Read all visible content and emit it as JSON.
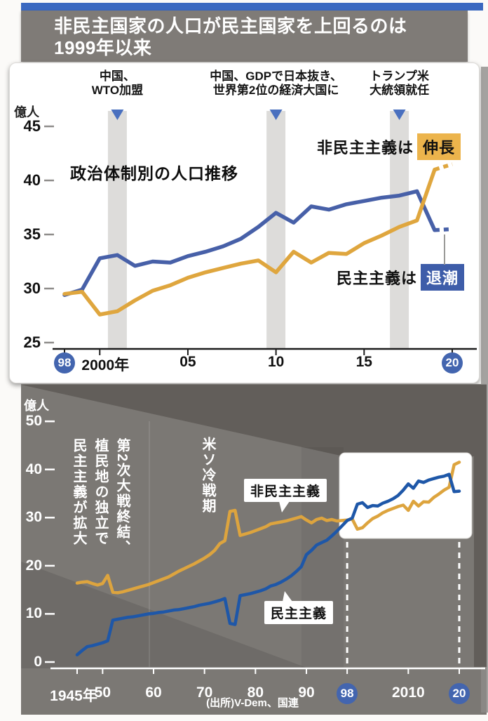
{
  "header": {
    "title_line1": "非民主国家の人口が民主国家を上回るのは",
    "title_line2": "1999年以来"
  },
  "top_chart": {
    "title": "政治体制別の人口推移",
    "unit": "億人",
    "growth_label": {
      "prefix": "非民主主義は",
      "highlight": "伸長"
    },
    "decline_label": {
      "prefix": "民主主義は",
      "highlight": "退潮"
    }
  },
  "bottom_chart": {
    "unit": "億人",
    "era_wwii_lines": [
      "第2次大戦終結、",
      "植民地の独立で",
      "民主主義が拡大"
    ],
    "era_coldwar": "米ソ冷戦期",
    "series_tag_nondemocracy": "非民主主義",
    "series_tag_democracy": "民主主義",
    "source": "(出所)V-Dem、国連"
  },
  "colors": {
    "accent_bar": "#3a68c0",
    "badge_bg": "#4365af",
    "growth_highlight_bg": "#ecb44c",
    "decline_highlight_bg": "#3e5da9",
    "democracy_top": "#4760a8",
    "nondemocracy_top": "#dfa63e",
    "democracy_bottom": "#1e57a8",
    "nondemocracy_bottom": "#dda43e",
    "event_marker": "#4a70bf",
    "event_band": "#dddcda"
  },
  "chart_data": [
    {
      "id": "top",
      "type": "line",
      "title": "政治体制別の人口推移",
      "ylabel": "億人",
      "ylim": [
        25,
        45
      ],
      "y_ticks": [
        45,
        40,
        35,
        30,
        25
      ],
      "year_start": 1998,
      "year_end": 2020,
      "x_ticks": [
        {
          "year": 1998,
          "label": "98",
          "circle": true
        },
        {
          "year": 2000,
          "label": "2000年",
          "circle": false
        },
        {
          "year": 2005,
          "label": "05",
          "circle": false
        },
        {
          "year": 2010,
          "label": "10",
          "circle": false
        },
        {
          "year": 2015,
          "label": "15",
          "circle": false
        },
        {
          "year": 2020,
          "label": "20",
          "circle": true
        }
      ],
      "annotations": [
        {
          "year": 2001,
          "lines": [
            "中国、",
            "WTO加盟"
          ]
        },
        {
          "year": 2010,
          "lines": [
            "中国、GDPで日本抜き、",
            "世界第2位の経済大国に"
          ]
        },
        {
          "year": 2017,
          "lines": [
            "トランプ米",
            "大統領就任"
          ]
        }
      ],
      "series": [
        {
          "name": "民主主義",
          "color": "#4760a8",
          "dashed_from_year": 2019,
          "values": [
            29.4,
            29.9,
            32.8,
            33.1,
            32.1,
            32.5,
            32.4,
            33.0,
            33.4,
            33.9,
            34.6,
            35.7,
            37.0,
            36.1,
            37.6,
            37.3,
            37.8,
            38.1,
            38.4,
            38.6,
            39.0,
            35.4,
            35.5
          ]
        },
        {
          "name": "非民主主義",
          "color": "#dfa63e",
          "dashed_from_year": 2019,
          "values": [
            29.5,
            29.7,
            27.6,
            27.9,
            28.9,
            29.8,
            30.3,
            31.0,
            31.5,
            31.9,
            32.3,
            32.6,
            31.5,
            33.4,
            32.4,
            33.3,
            33.2,
            34.2,
            34.9,
            35.7,
            36.3,
            41.0,
            41.5
          ]
        }
      ]
    },
    {
      "id": "bottom",
      "type": "line",
      "title": "",
      "ylabel": "億人",
      "ylim": [
        0,
        50
      ],
      "y_ticks": [
        50,
        40,
        30,
        20,
        10,
        0
      ],
      "year_start": 1945,
      "year_end": 2020,
      "x_ticks": [
        {
          "year": 1945,
          "label": "1945年",
          "circle": false
        },
        {
          "year": 1950,
          "label": "50",
          "circle": false
        },
        {
          "year": 1960,
          "label": "60",
          "circle": false
        },
        {
          "year": 1970,
          "label": "70",
          "circle": false
        },
        {
          "year": 1980,
          "label": "80",
          "circle": false
        },
        {
          "year": 1990,
          "label": "90",
          "circle": false
        },
        {
          "year": 1998,
          "label": "98",
          "circle": true
        },
        {
          "year": 2010,
          "label": "2010",
          "circle": false
        },
        {
          "year": 2020,
          "label": "20",
          "circle": true
        }
      ],
      "highlight_box_years": [
        1998,
        2020
      ],
      "series": [
        {
          "name": "非民主主義",
          "color": "#dda43e",
          "dashed_from_year": null,
          "values": [
            16.4,
            16.6,
            16.7,
            16.3,
            16.0,
            16.3,
            18.0,
            14.5,
            14.4,
            14.6,
            14.9,
            15.2,
            15.5,
            15.8,
            16.1,
            16.5,
            16.9,
            17.3,
            17.7,
            18.3,
            18.9,
            19.4,
            19.9,
            20.4,
            21.0,
            21.6,
            22.3,
            23.2,
            24.6,
            25.2,
            31.3,
            31.5,
            26.3,
            26.6,
            26.9,
            27.3,
            27.7,
            28.1,
            28.7,
            28.9,
            29.1,
            29.3,
            29.6,
            29.9,
            30.2,
            29.5,
            28.9,
            29.6,
            29.9,
            29.4,
            29.6,
            29.3,
            29.4,
            29.5,
            29.7,
            27.6,
            27.9,
            28.9,
            29.8,
            30.3,
            31.0,
            31.5,
            31.9,
            32.3,
            32.6,
            31.5,
            33.4,
            32.4,
            33.3,
            33.2,
            34.2,
            34.9,
            35.7,
            36.3,
            41.0,
            41.5
          ]
        },
        {
          "name": "民主主義",
          "color": "#1e57a8",
          "dashed_from_year": null,
          "values": [
            1.5,
            2.4,
            3.2,
            3.4,
            3.7,
            4.0,
            4.4,
            8.7,
            8.9,
            9.1,
            9.3,
            9.4,
            9.6,
            9.8,
            10.0,
            10.1,
            10.3,
            10.4,
            10.6,
            10.8,
            10.9,
            11.1,
            11.3,
            11.5,
            11.8,
            12.0,
            12.2,
            12.5,
            12.8,
            13.2,
            8.0,
            7.8,
            13.8,
            14.0,
            14.2,
            14.5,
            14.8,
            15.2,
            15.8,
            16.1,
            16.6,
            17.2,
            17.9,
            18.8,
            19.8,
            22.3,
            23.2,
            24.3,
            24.8,
            25.3,
            26.2,
            27.2,
            28.3,
            29.4,
            29.9,
            32.8,
            33.1,
            32.1,
            32.5,
            32.4,
            33.0,
            33.4,
            33.9,
            34.6,
            35.7,
            37.0,
            36.1,
            37.6,
            37.3,
            37.8,
            38.1,
            38.4,
            38.6,
            39.0,
            35.4,
            35.5
          ]
        }
      ]
    }
  ]
}
